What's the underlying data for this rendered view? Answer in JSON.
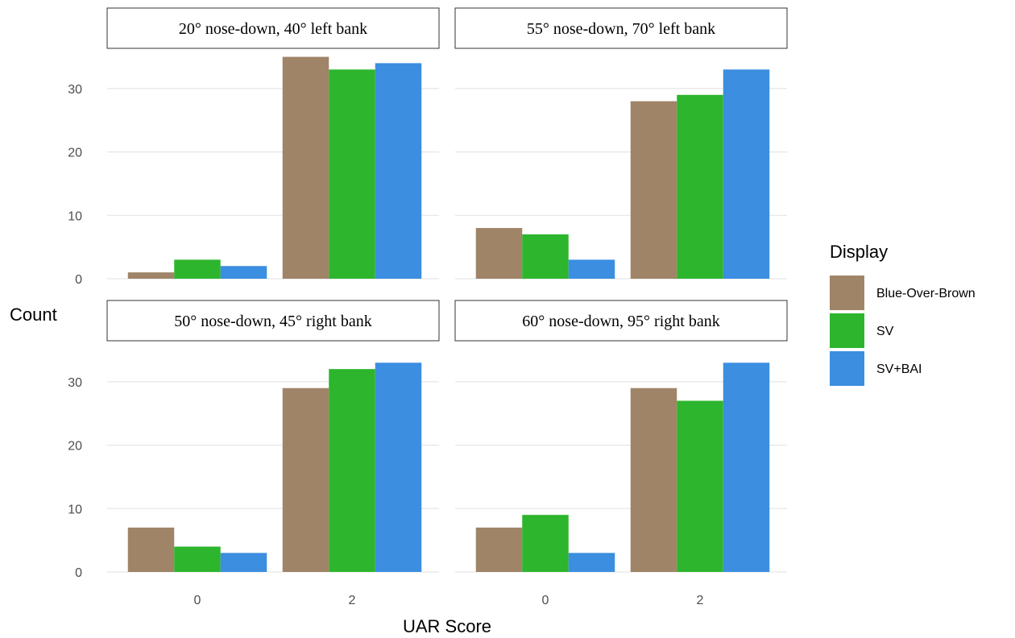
{
  "chart_data": {
    "type": "bar",
    "xlabel": "UAR Score",
    "ylabel": "Count",
    "ylim": [
      0,
      35
    ],
    "y_ticks": [
      0,
      10,
      20,
      30
    ],
    "grid": true,
    "legend": {
      "title": "Display",
      "placement": "right"
    },
    "series_colors": {
      "Blue-Over-Brown": "#a08468",
      "SV": "#2db52d",
      "SV+BAI": "#3b8ee0"
    },
    "panels": [
      {
        "title": "20° nose-down, 40° left bank",
        "categories": [
          "0",
          "2"
        ],
        "series": [
          {
            "name": "Blue-Over-Brown",
            "values": [
              1,
              35
            ]
          },
          {
            "name": "SV",
            "values": [
              3,
              33
            ]
          },
          {
            "name": "SV+BAI",
            "values": [
              2,
              34
            ]
          }
        ]
      },
      {
        "title": "55° nose-down, 70° left bank",
        "categories": [
          "0",
          "2"
        ],
        "series": [
          {
            "name": "Blue-Over-Brown",
            "values": [
              8,
              28
            ]
          },
          {
            "name": "SV",
            "values": [
              7,
              29
            ]
          },
          {
            "name": "SV+BAI",
            "values": [
              3,
              33
            ]
          }
        ]
      },
      {
        "title": "50° nose-down, 45° right bank",
        "categories": [
          "0",
          "2"
        ],
        "series": [
          {
            "name": "Blue-Over-Brown",
            "values": [
              7,
              29
            ]
          },
          {
            "name": "SV",
            "values": [
              4,
              32
            ]
          },
          {
            "name": "SV+BAI",
            "values": [
              3,
              33
            ]
          }
        ]
      },
      {
        "title": "60° nose-down, 95° right bank",
        "categories": [
          "0",
          "2"
        ],
        "series": [
          {
            "name": "Blue-Over-Brown",
            "values": [
              7,
              29
            ]
          },
          {
            "name": "SV",
            "values": [
              9,
              27
            ]
          },
          {
            "name": "SV+BAI",
            "values": [
              3,
              33
            ]
          }
        ]
      }
    ]
  }
}
